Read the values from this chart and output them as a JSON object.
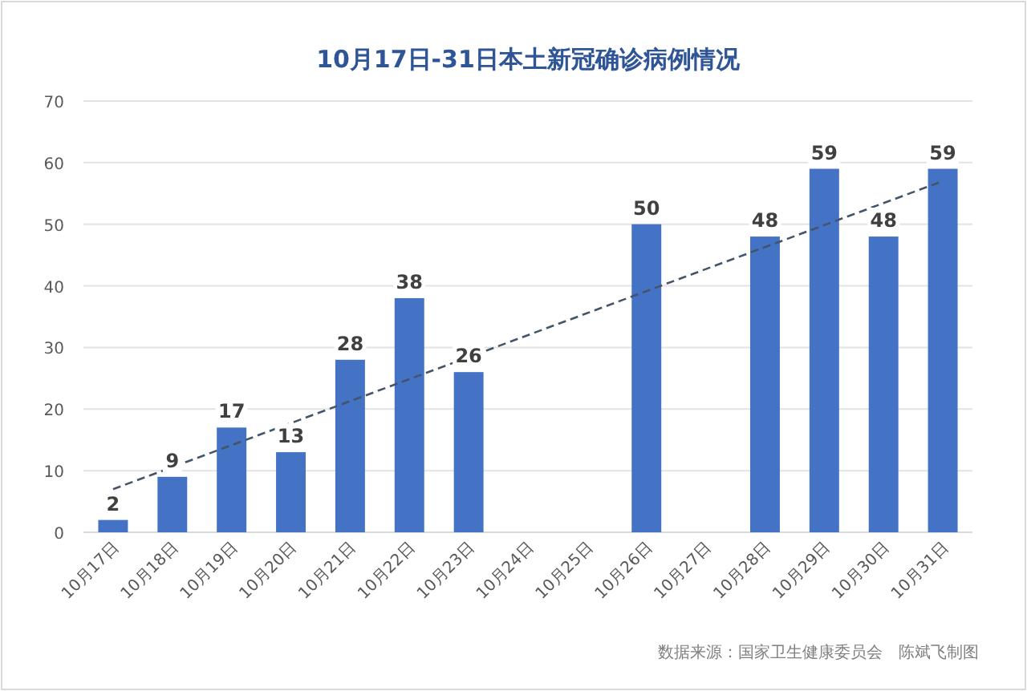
{
  "chart_data": {
    "type": "bar",
    "title": "10月17日-31日本土新冠确诊病例情况",
    "categories": [
      "10月17日",
      "10月18日",
      "10月19日",
      "10月20日",
      "10月21日",
      "10月22日",
      "10月23日",
      "10月24日",
      "10月25日",
      "10月26日",
      "10月27日",
      "10月28日",
      "10月29日",
      "10月30日",
      "10月31日"
    ],
    "series": [
      {
        "color": "#4472c4",
        "values": [
          2,
          9,
          17,
          13,
          28,
          38,
          26,
          null,
          null,
          50,
          null,
          48,
          59,
          48,
          59
        ],
        "value_labels": [
          "2",
          "9",
          "17",
          "13",
          "28",
          "38",
          "26",
          null,
          null,
          "50",
          null,
          "48",
          "59",
          "48",
          "59"
        ]
      },
      {
        "type": "line",
        "color": "#44546a",
        "line_style": "dashed",
        "marker": "none",
        "x": [
          "10月17日",
          "10月31日"
        ],
        "values": [
          7,
          57
        ]
      }
    ],
    "ylim": [
      0,
      70
    ],
    "yticks": [
      0,
      10,
      20,
      30,
      40,
      50,
      60,
      70
    ],
    "grid": "y",
    "annotations": [
      "数据来源：国家卫生健康委员会　陈斌飞制图"
    ]
  }
}
